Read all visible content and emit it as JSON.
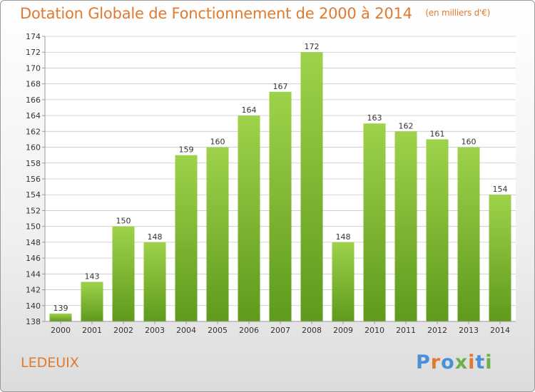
{
  "chart_data": {
    "type": "bar",
    "title": "Dotation Globale de Fonctionnement de 2000 à 2014",
    "subtitle": "(en milliers d'€)",
    "categories": [
      "2000",
      "2001",
      "2002",
      "2003",
      "2004",
      "2005",
      "2006",
      "2007",
      "2008",
      "2009",
      "2010",
      "2011",
      "2012",
      "2013",
      "2014"
    ],
    "values": [
      139,
      143,
      150,
      148,
      159,
      160,
      164,
      167,
      172,
      148,
      163,
      162,
      161,
      160,
      154
    ],
    "ylim": [
      138,
      174
    ],
    "ytick_step": 2,
    "xlabel": "",
    "ylabel": "",
    "grid": true,
    "bar_color_light": "#9ed24a",
    "bar_color_dark": "#5f9a1c"
  },
  "commune": "LEDEUIX",
  "logo": {
    "text": "Proxiti",
    "letter_colors": [
      "#4a90d9",
      "#e07a2e",
      "#4a90d9",
      "#6ab04c",
      "#e07a2e",
      "#4a90d9",
      "#6ab04c"
    ]
  },
  "colors": {
    "accent": "#e07a2e",
    "grid": "#c8c8c8",
    "axis": "#999999"
  }
}
